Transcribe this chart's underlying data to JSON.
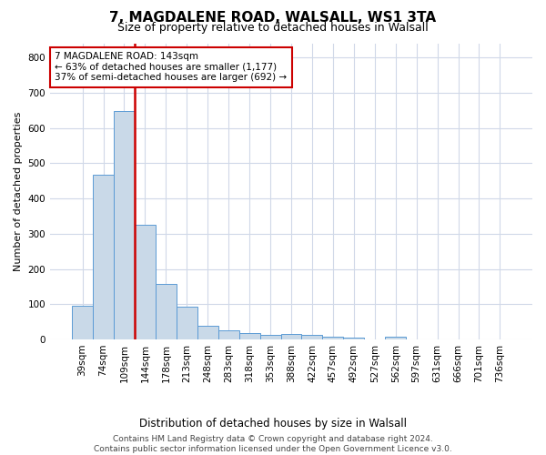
{
  "title_line1": "7, MAGDALENE ROAD, WALSALL, WS1 3TA",
  "title_line2": "Size of property relative to detached houses in Walsall",
  "xlabel": "Distribution of detached houses by size in Walsall",
  "ylabel": "Number of detached properties",
  "categories": [
    "39sqm",
    "74sqm",
    "109sqm",
    "144sqm",
    "178sqm",
    "213sqm",
    "248sqm",
    "283sqm",
    "318sqm",
    "353sqm",
    "388sqm",
    "422sqm",
    "457sqm",
    "492sqm",
    "527sqm",
    "562sqm",
    "597sqm",
    "631sqm",
    "666sqm",
    "701sqm",
    "736sqm"
  ],
  "values": [
    95,
    468,
    648,
    325,
    158,
    93,
    40,
    25,
    17,
    14,
    15,
    12,
    7,
    5,
    0,
    7,
    0,
    0,
    0,
    0,
    0
  ],
  "bar_color": "#c9d9e8",
  "bar_edge_color": "#5b9bd5",
  "grid_color": "#d0d8e8",
  "background_color": "#ffffff",
  "annotation_label": "7 MAGDALENE ROAD: 143sqm",
  "annotation_line2": "← 63% of detached houses are smaller (1,177)",
  "annotation_line3": "37% of semi-detached houses are larger (692) →",
  "annotation_box_color": "#ffffff",
  "annotation_box_edge": "#cc0000",
  "property_line_color": "#cc0000",
  "ylim": [
    0,
    840
  ],
  "yticks": [
    0,
    100,
    200,
    300,
    400,
    500,
    600,
    700,
    800
  ],
  "footer_line1": "Contains HM Land Registry data © Crown copyright and database right 2024.",
  "footer_line2": "Contains public sector information licensed under the Open Government Licence v3.0.",
  "title_fontsize": 11,
  "subtitle_fontsize": 9,
  "ylabel_fontsize": 8,
  "xlabel_fontsize": 8.5,
  "tick_fontsize": 7.5,
  "annotation_fontsize": 7.5,
  "footer_fontsize": 6.5
}
